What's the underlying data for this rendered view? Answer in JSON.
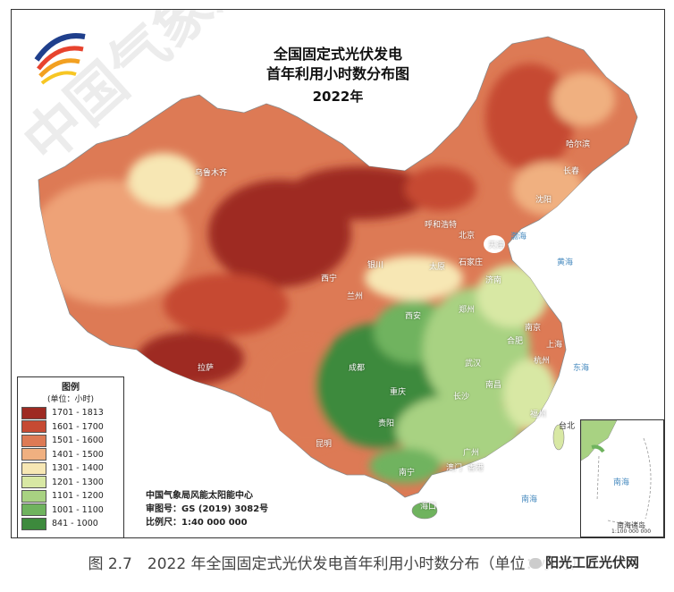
{
  "title": {
    "line1": "全国固定式光伏发电",
    "line2": "首年利用小时数分布图",
    "year": "2022年"
  },
  "legend": {
    "title": "图例",
    "unit": "(单位：小时)",
    "items": [
      {
        "label": "1701 - 1813",
        "color": "#9e2a22"
      },
      {
        "label": "1601 - 1700",
        "color": "#c64a33"
      },
      {
        "label": "1501 - 1600",
        "color": "#dd7a55"
      },
      {
        "label": "1401 - 1500",
        "color": "#f0b080"
      },
      {
        "label": "1301 - 1400",
        "color": "#f7e7b4"
      },
      {
        "label": "1201 - 1300",
        "color": "#d8e8a4"
      },
      {
        "label": "1101 - 1200",
        "color": "#a8d282"
      },
      {
        "label": "1001 - 1100",
        "color": "#6fb35e"
      },
      {
        "label": "841 - 1000",
        "color": "#3d8a3d"
      }
    ]
  },
  "credits": {
    "org": "中国气象局风能太阳能中心",
    "review": "审图号：GS (2019) 3082号",
    "scale": "比例尺：1:40 000 000"
  },
  "cities": [
    {
      "name": "哈尔滨",
      "dark": false
    },
    {
      "name": "长春",
      "dark": false
    },
    {
      "name": "沈阳",
      "dark": false
    },
    {
      "name": "呼和浩特",
      "dark": false
    },
    {
      "name": "北京",
      "dark": false
    },
    {
      "name": "天津",
      "dark": false
    },
    {
      "name": "石家庄",
      "dark": false
    },
    {
      "name": "太原",
      "dark": false
    },
    {
      "name": "济南",
      "dark": false
    },
    {
      "name": "银川",
      "dark": false
    },
    {
      "name": "兰州",
      "dark": false
    },
    {
      "name": "西宁",
      "dark": false
    },
    {
      "name": "乌鲁木齐",
      "dark": false
    },
    {
      "name": "拉萨",
      "dark": false
    },
    {
      "name": "西安",
      "dark": false
    },
    {
      "name": "郑州",
      "dark": false
    },
    {
      "name": "合肥",
      "dark": false
    },
    {
      "name": "南京",
      "dark": false
    },
    {
      "name": "上海",
      "dark": false
    },
    {
      "name": "杭州",
      "dark": false
    },
    {
      "name": "武汉",
      "dark": false
    },
    {
      "name": "成都",
      "dark": false
    },
    {
      "name": "重庆",
      "dark": false
    },
    {
      "name": "长沙",
      "dark": false
    },
    {
      "name": "南昌",
      "dark": false
    },
    {
      "name": "贵阳",
      "dark": false
    },
    {
      "name": "昆明",
      "dark": false
    },
    {
      "name": "南宁",
      "dark": false
    },
    {
      "name": "广州",
      "dark": false
    },
    {
      "name": "福州",
      "dark": false
    },
    {
      "name": "台北",
      "dark": true
    },
    {
      "name": "澳门",
      "dark": false
    },
    {
      "name": "香港",
      "dark": false
    },
    {
      "name": "海口",
      "dark": false
    }
  ],
  "inset": {
    "sea": "南海",
    "label": "南海诸岛",
    "scale": "1:100 000 000"
  },
  "seas": [
    "渤海",
    "黄海",
    "东海",
    "南海"
  ],
  "caption": "图 2.7　2022 年全国固定式光伏发电首年利用小时数分布（单位：小时）",
  "watermarks": {
    "diagonal": "中国气象局风",
    "brand": "阳光工匠光伏网"
  }
}
